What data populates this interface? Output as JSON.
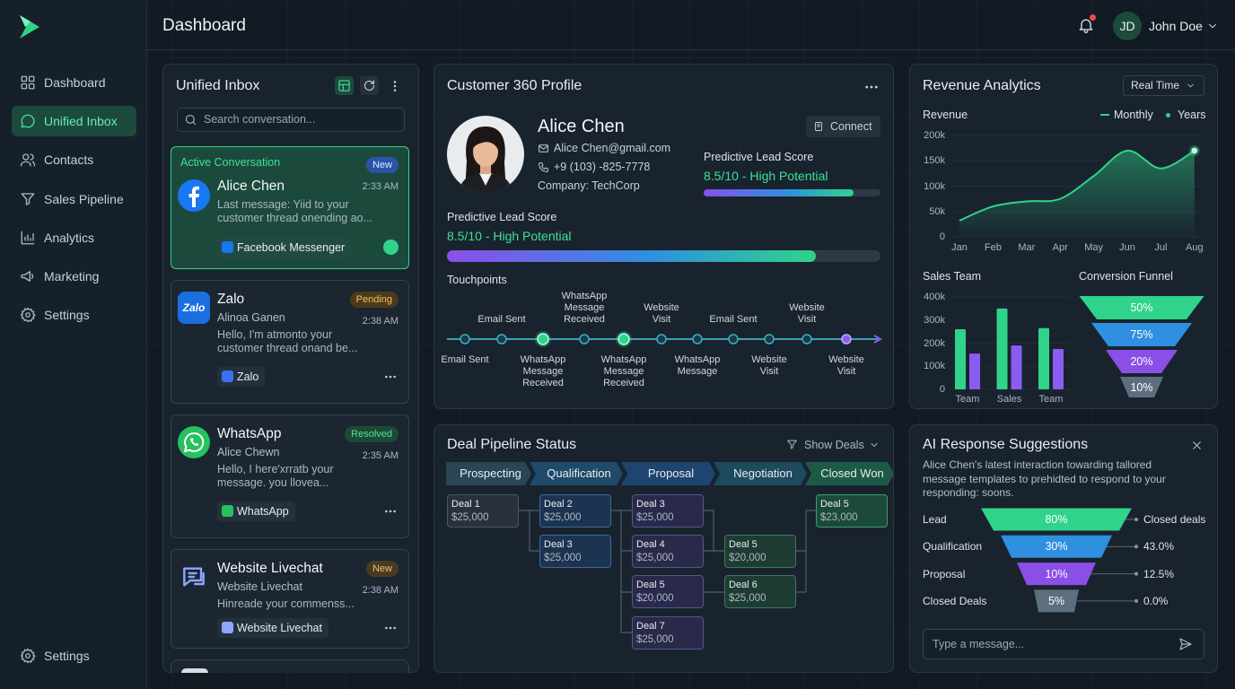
{
  "header": {
    "title": "Dashboard",
    "user": {
      "initials": "JD",
      "name": "John Doe"
    }
  },
  "sidebar": {
    "items": [
      "Dashboard",
      "Unified Inbox",
      "Contacts",
      "Sales Pipeline",
      "Analytics",
      "Marketing",
      "Settings"
    ],
    "active": 1,
    "bottom_item": "Settings"
  },
  "inbox": {
    "title": "Unified Inbox",
    "search_placeholder": "Search conversation...",
    "cards": [
      {
        "header": "Active Conversation",
        "badge": "New",
        "title": "Alice Chen",
        "time": "2:33 AM",
        "message": "Last message: Yiid to your customer thread onending ao...",
        "tag": "Facebook Messenger"
      },
      {
        "badge": "Pending",
        "icon_text": "Zalo",
        "title": "Zalo",
        "subtitle": "Alinoa Ganen",
        "time": "2:38 AM",
        "message": "Hello, I'm atmonto your customer thread onand be...",
        "tag": "Zalo"
      },
      {
        "badge": "Resolved",
        "title": "WhatsApp",
        "subtitle": "Alice Chewn",
        "time": "2:35 AM",
        "message": "Hello, I here'xrratb your message. you llovea...",
        "tag": "WhatsApp"
      },
      {
        "badge": "New",
        "title": "Website Livechat",
        "subtitle": "Website Livechat",
        "time": "2:38 AM",
        "message": "Hinreade your commenss...",
        "tag": "Website Livechat"
      }
    ]
  },
  "customer_profile": {
    "title": "Customer 360 Profile",
    "name": "Alice Chen",
    "email": "Alice Chen@gmail.com",
    "phone": "+9 (103) -825-7778",
    "company": "Company: TechCorp",
    "action": "Connect",
    "lead_scores": [
      {
        "label": "Predictive Lead Score",
        "text": "8.5/10 - High Potential",
        "value": 8.5,
        "max": 10
      },
      {
        "label": "Predictive Lead Score",
        "text": "8.5/10 - High Potential",
        "value": 8.5,
        "max": 10
      }
    ],
    "touchpoints": {
      "title": "Touchpoints",
      "above": [
        "Email Sent",
        "WhatsApp Message Received",
        "Website Visit",
        "Email Sent",
        "Website Visit"
      ],
      "below": [
        "Email Sent",
        "WhatsApp Message Received",
        "WhatsApp Message Received",
        "WhatsApp Message",
        "Website Visit",
        "Website Visit"
      ]
    }
  },
  "revenue_analytics": {
    "title": "Revenue Analytics",
    "filter": "Real Time",
    "revenue": {
      "type": "line",
      "title": "Revenue",
      "toggles": [
        "Monthly",
        "Years"
      ],
      "categories": [
        "Jan",
        "Feb",
        "Mar",
        "Apr",
        "May",
        "Jun",
        "Jul",
        "Aug"
      ],
      "values": [
        32000,
        60000,
        70000,
        75000,
        120000,
        170000,
        135000,
        170000
      ],
      "color": "#2fd38a",
      "ylim": [
        0,
        200000
      ],
      "yticks": [
        0,
        {
          "value": 50000,
          "label": "50k"
        },
        {
          "value": 100000,
          "label": "100k"
        },
        {
          "value": 150000,
          "label": "150k"
        },
        {
          "value": 200000,
          "label": "200k"
        }
      ]
    },
    "sales_team": {
      "type": "bar",
      "title": "Sales Team",
      "categories": [
        "Team",
        "Sales",
        "Team"
      ],
      "series": [
        {
          "color": "#2fd38a",
          "values": [
            260000,
            350000,
            265000
          ]
        },
        {
          "color": "#8b5cf0",
          "values": [
            155000,
            190000,
            175000
          ]
        }
      ],
      "ylim": [
        0,
        400000
      ],
      "yticks": [
        0,
        {
          "value": 100000,
          "label": "100k"
        },
        {
          "value": 200000,
          "label": "200k"
        },
        {
          "value": 300000,
          "label": "300k"
        },
        {
          "value": 400000,
          "label": "400k"
        }
      ]
    },
    "conversion_funnel": {
      "type": "funnel",
      "title": "Conversion Funnel",
      "values": [
        50,
        75,
        20,
        10
      ],
      "value_labels": [
        "50%",
        "75%",
        "20%",
        "10%"
      ],
      "colors": [
        "#2fd38a",
        "#2f8fe0",
        "#8b4fe8",
        "#5d6f7e"
      ]
    }
  },
  "deal_pipeline": {
    "title": "Deal Pipeline Status",
    "filter": "Show Deals",
    "stages": [
      {
        "name": "Prospecting",
        "deals": [
          {
            "name": "Deal 1",
            "amount": "$25,000"
          }
        ]
      },
      {
        "name": "Qualification",
        "deals": [
          {
            "name": "Deal 2",
            "amount": "$25,000"
          },
          {
            "name": "Deal 3",
            "amount": "$25,000"
          }
        ]
      },
      {
        "name": "Proposal",
        "deals": [
          {
            "name": "Deal 3",
            "amount": "$25,000"
          },
          {
            "name": "Deal 4",
            "amount": "$25,000"
          },
          {
            "name": "Deal 5",
            "amount": "$20,000"
          },
          {
            "name": "Deal 7",
            "amount": "$25,000"
          }
        ]
      },
      {
        "name": "Negotiation",
        "deals": [
          {
            "name": "Deal 5",
            "amount": "$20,000"
          },
          {
            "name": "Deal 6",
            "amount": "$25,000"
          }
        ]
      },
      {
        "name": "Closed Won",
        "deals": [
          {
            "name": "Deal 5",
            "amount": "$23,000"
          }
        ]
      }
    ]
  },
  "ai_suggestions": {
    "title": "AI Response Suggestions",
    "text": "Alice Chen's latest interaction towarding tallored message templates to prehidted to respond to your responding: soons.",
    "funnel": {
      "type": "funnel",
      "categories": [
        "Lead",
        "Qualification",
        "Proposal",
        "Closed Deals"
      ],
      "values": [
        80,
        30,
        10,
        5
      ],
      "value_labels": [
        "80%",
        "30%",
        "10%",
        "5%"
      ],
      "right_labels": [
        "Closed deals",
        "43.0%",
        "12.5%",
        "0.0%"
      ],
      "colors": [
        "#2fd38a",
        "#2f8fe0",
        "#8b4fe8",
        "#5d6f7e"
      ]
    },
    "input_placeholder": "Type a message..."
  }
}
